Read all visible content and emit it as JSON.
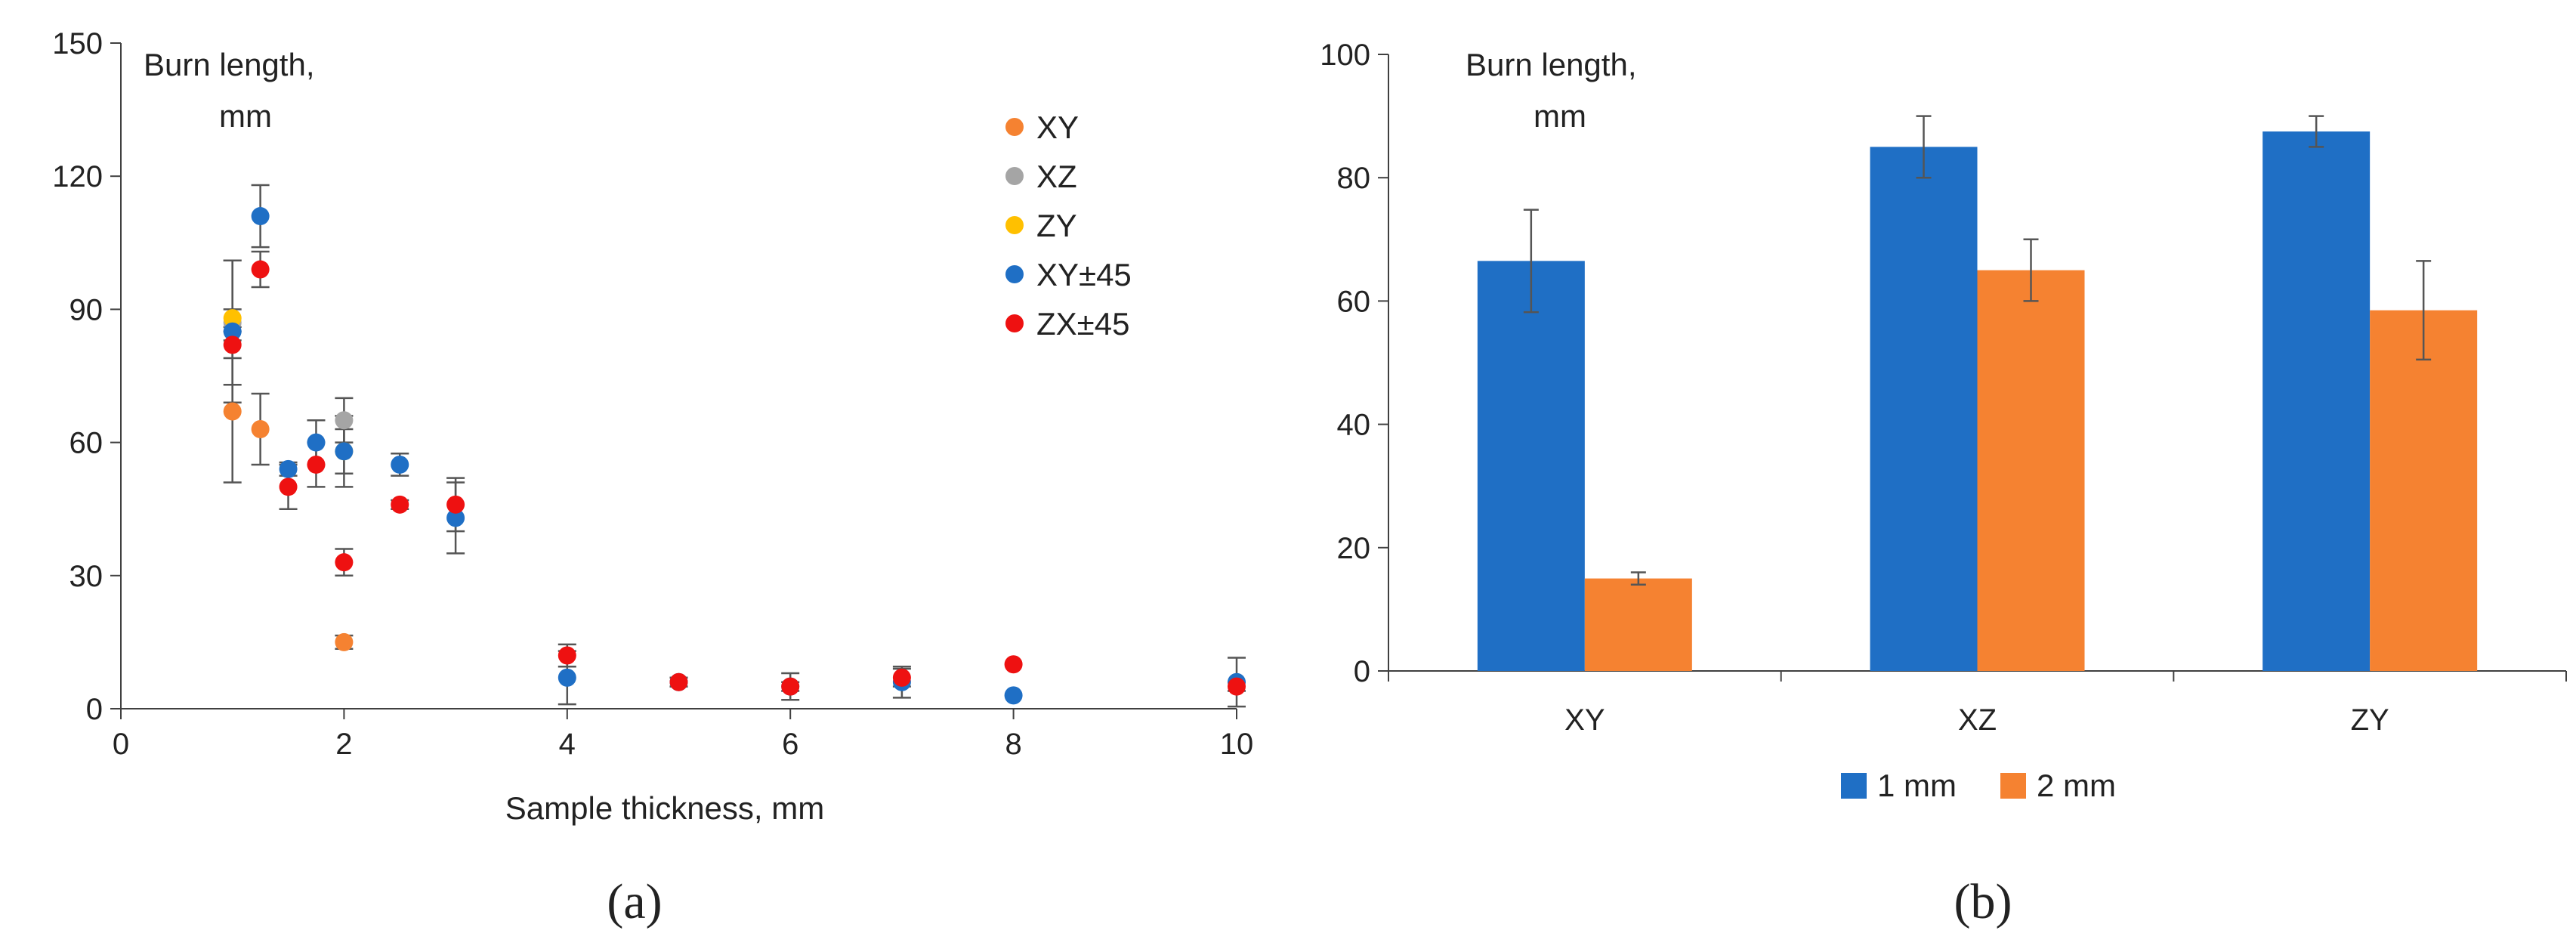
{
  "chart_data": [
    {
      "type": "scatter",
      "panel_label": "(a)",
      "xlabel": "Sample thickness, mm",
      "ylabel": [
        "Burn length,",
        "mm"
      ],
      "xlim": [
        0,
        10
      ],
      "ylim": [
        0,
        150
      ],
      "xticks": [
        0,
        2,
        4,
        6,
        8,
        10
      ],
      "yticks": [
        0,
        30,
        60,
        90,
        120,
        150
      ],
      "grid": false,
      "legend_position": "top-right",
      "series": [
        {
          "name": "XY",
          "color": "#F58231",
          "points": [
            {
              "x": 1,
              "y": 67,
              "err": 16
            },
            {
              "x": 1.25,
              "y": 63,
              "err": 8
            },
            {
              "x": 2,
              "y": 15,
              "err": 1.5
            }
          ]
        },
        {
          "name": "XZ",
          "color": "#A5A5A5",
          "points": [
            {
              "x": 1,
              "y": 87,
              "err": 14
            },
            {
              "x": 2,
              "y": 65,
              "err": 5
            }
          ]
        },
        {
          "name": "ZY",
          "color": "#FFC000",
          "points": [
            {
              "x": 1,
              "y": 88,
              "err": 2
            },
            {
              "x": 2,
              "y": 58,
              "err": 8
            }
          ]
        },
        {
          "name": "XY±45",
          "color": "#1F6FC5",
          "points": [
            {
              "x": 1,
              "y": 85,
              "err": 16
            },
            {
              "x": 1.25,
              "y": 111,
              "err": 7
            },
            {
              "x": 1.5,
              "y": 54,
              "err": 1.5
            },
            {
              "x": 1.75,
              "y": 60,
              "err": 5
            },
            {
              "x": 2,
              "y": 58,
              "err": 5
            },
            {
              "x": 2.5,
              "y": 55,
              "err": 2.5
            },
            {
              "x": 3,
              "y": 43,
              "err": 8
            },
            {
              "x": 4,
              "y": 7,
              "err": 6
            },
            {
              "x": 5,
              "y": 6,
              "err": 1
            },
            {
              "x": 6,
              "y": 5,
              "err": 3
            },
            {
              "x": 7,
              "y": 6,
              "err": 3.5
            },
            {
              "x": 8,
              "y": 3,
              "err": 0
            },
            {
              "x": 10,
              "y": 6,
              "err": 5.5
            }
          ]
        },
        {
          "name": "ZX±45",
          "color": "#EE1111",
          "points": [
            {
              "x": 1,
              "y": 82,
              "err": 3
            },
            {
              "x": 1.25,
              "y": 99,
              "err": 4
            },
            {
              "x": 1.5,
              "y": 50,
              "err": 5
            },
            {
              "x": 1.75,
              "y": 55,
              "err": 5
            },
            {
              "x": 2,
              "y": 33,
              "err": 3
            },
            {
              "x": 2.5,
              "y": 46,
              "err": 1
            },
            {
              "x": 3,
              "y": 46,
              "err": 6
            },
            {
              "x": 4,
              "y": 12,
              "err": 2.5
            },
            {
              "x": 5,
              "y": 6,
              "err": 1
            },
            {
              "x": 6,
              "y": 5,
              "err": 1
            },
            {
              "x": 7,
              "y": 7,
              "err": 2
            },
            {
              "x": 8,
              "y": 10,
              "err": 0
            },
            {
              "x": 10,
              "y": 5,
              "err": 1
            }
          ]
        }
      ]
    },
    {
      "type": "bar",
      "panel_label": "(b)",
      "xlabel": "",
      "ylabel": [
        "Burn length,",
        "mm"
      ],
      "ylim": [
        0,
        100
      ],
      "yticks": [
        0,
        20,
        40,
        60,
        80,
        100
      ],
      "grid": false,
      "legend_position": "bottom",
      "categories": [
        "XY",
        "XZ",
        "ZY"
      ],
      "series": [
        {
          "name": "1 mm",
          "color": "#1F6FC5",
          "values": [
            66.5,
            85,
            87.5
          ],
          "errors": [
            8.3,
            5,
            2.5
          ]
        },
        {
          "name": "2 mm",
          "color": "#F58231",
          "values": [
            15,
            65,
            58.5
          ],
          "errors": [
            1,
            5,
            8
          ]
        }
      ]
    }
  ]
}
